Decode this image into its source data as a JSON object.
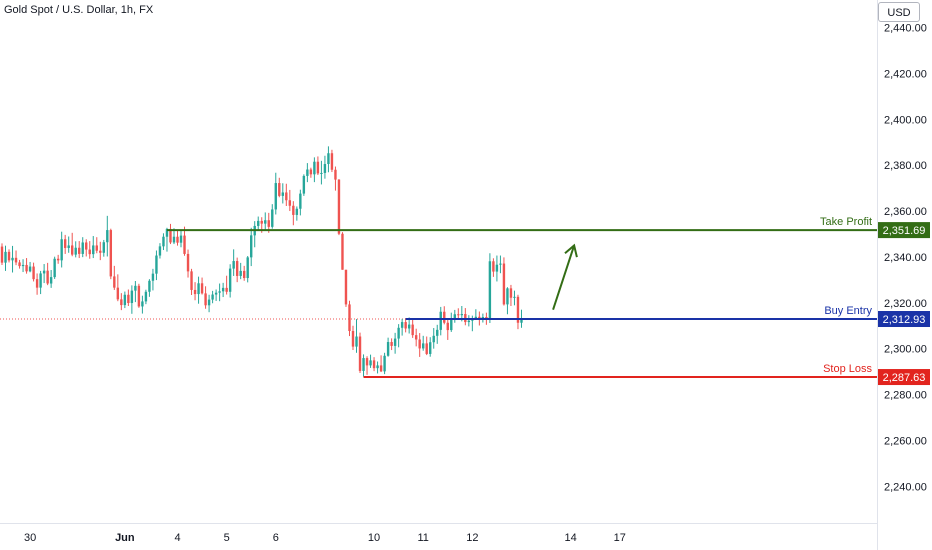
{
  "header": {
    "title": "Gold Spot / U.S. Dollar, 1h, FX"
  },
  "currency": "USD",
  "colors": {
    "up": "#26a69a",
    "down": "#ef5350",
    "take_profit": "#336d15",
    "buy_entry": "#1a33a7",
    "stop_loss": "#e2241e",
    "arrow": "#336d15",
    "axis_text": "#131722",
    "dotted": "#ef5350"
  },
  "chart_data": {
    "type": "candlestick",
    "title": "Gold Spot / U.S. Dollar, 1h, FX",
    "ylim": [
      2224,
      2452
    ],
    "y_ticks": [
      2240,
      2260,
      2280,
      2300,
      2320,
      2340,
      2360,
      2380,
      2400,
      2420,
      2440
    ],
    "y_tick_labels": [
      "2,240.00",
      "2,260.00",
      "2,280.00",
      "2,300.00",
      "2,320.00",
      "2,340.00",
      "2,360.00",
      "2,380.00",
      "2,400.00",
      "2,420.00",
      "2,440.00"
    ],
    "x_ticks": [
      {
        "bar": 8,
        "label": "30"
      },
      {
        "bar": 35,
        "label": "Jun"
      },
      {
        "bar": 50,
        "label": "4"
      },
      {
        "bar": 64,
        "label": "5"
      },
      {
        "bar": 78,
        "label": "6"
      },
      {
        "bar": 106,
        "label": "10"
      },
      {
        "bar": 120,
        "label": "11"
      },
      {
        "bar": 134,
        "label": "12"
      },
      {
        "bar": 162,
        "label": "14"
      },
      {
        "bar": 176,
        "label": "17"
      }
    ],
    "levels": [
      {
        "name": "Take Profit",
        "value": 2351.69,
        "label": "2,351.69",
        "start_bar": 47
      },
      {
        "name": "Buy Entry",
        "value": 2312.93,
        "label": "2,312.93",
        "start_bar": 115
      },
      {
        "name": "Stop Loss",
        "value": 2287.63,
        "label": "2,287.63",
        "start_bar": 103
      }
    ],
    "current_price": 2312.93,
    "arrow": {
      "from_bar": 157,
      "from": 2317,
      "to_bar": 163,
      "to": 2345
    },
    "candles": [
      [
        2344.5,
        2345.9,
        2336.5,
        2337.5
      ],
      [
        2337.5,
        2344.9,
        2333.9,
        2342.2
      ],
      [
        2342.2,
        2343.3,
        2337.6,
        2338.5
      ],
      [
        2338.5,
        2344.8,
        2333.2,
        2339.6
      ],
      [
        2339.6,
        2342.8,
        2336.4,
        2337.6
      ],
      [
        2337.6,
        2338.7,
        2334.9,
        2336.0
      ],
      [
        2336.0,
        2339.0,
        2333.4,
        2336.5
      ],
      [
        2336.5,
        2339.5,
        2332.7,
        2333.7
      ],
      [
        2333.7,
        2337.8,
        2333.3,
        2335.8
      ],
      [
        2335.8,
        2337.5,
        2329.3,
        2330.3
      ],
      [
        2330.3,
        2332.8,
        2323.5,
        2326.6
      ],
      [
        2326.6,
        2333.9,
        2323.8,
        2332.8
      ],
      [
        2332.8,
        2336.9,
        2328.6,
        2334.0
      ],
      [
        2334.0,
        2337.4,
        2327.7,
        2328.4
      ],
      [
        2328.4,
        2334.3,
        2326.5,
        2331.2
      ],
      [
        2331.2,
        2340.1,
        2330.4,
        2339.2
      ],
      [
        2339.2,
        2340.9,
        2337.0,
        2338.5
      ],
      [
        2338.5,
        2351.0,
        2335.4,
        2347.7
      ],
      [
        2347.7,
        2349.6,
        2341.3,
        2343.9
      ],
      [
        2343.9,
        2348.9,
        2341.8,
        2345.0
      ],
      [
        2345.0,
        2350.5,
        2340.3,
        2341.0
      ],
      [
        2341.0,
        2346.8,
        2339.8,
        2344.0
      ],
      [
        2344.0,
        2346.9,
        2339.5,
        2341.3
      ],
      [
        2341.3,
        2348.6,
        2339.9,
        2346.3
      ],
      [
        2346.3,
        2347.7,
        2340.2,
        2343.2
      ],
      [
        2343.2,
        2346.9,
        2339.2,
        2341.2
      ],
      [
        2341.2,
        2349.1,
        2339.5,
        2345.0
      ],
      [
        2345.0,
        2348.6,
        2341.6,
        2342.7
      ],
      [
        2342.7,
        2346.6,
        2338.6,
        2341.8
      ],
      [
        2341.8,
        2347.4,
        2340.1,
        2346.4
      ],
      [
        2346.4,
        2357.9,
        2340.2,
        2351.7
      ],
      [
        2351.7,
        2352.3,
        2330.3,
        2331.5
      ],
      [
        2331.5,
        2336.1,
        2325.6,
        2326.6
      ],
      [
        2326.6,
        2332.4,
        2320.7,
        2321.5
      ],
      [
        2321.5,
        2324.2,
        2316.8,
        2319.0
      ],
      [
        2319.0,
        2324.9,
        2317.7,
        2323.5
      ],
      [
        2323.5,
        2325.8,
        2318.6,
        2319.9
      ],
      [
        2319.9,
        2327.6,
        2315.2,
        2325.3
      ],
      [
        2325.3,
        2329.5,
        2320.3,
        2327.4
      ],
      [
        2327.4,
        2328.3,
        2317.8,
        2318.4
      ],
      [
        2318.4,
        2323.1,
        2315.3,
        2320.6
      ],
      [
        2320.6,
        2325.7,
        2319.4,
        2324.8
      ],
      [
        2324.8,
        2330.3,
        2322.6,
        2329.6
      ],
      [
        2329.6,
        2334.8,
        2325.4,
        2332.7
      ],
      [
        2332.7,
        2342.8,
        2329.9,
        2340.6
      ],
      [
        2340.6,
        2346.0,
        2339.3,
        2344.6
      ],
      [
        2344.6,
        2350.3,
        2343.0,
        2348.8
      ],
      [
        2348.8,
        2352.7,
        2342.3,
        2352.2
      ],
      [
        2352.2,
        2354.4,
        2345.6,
        2346.3
      ],
      [
        2346.3,
        2352.5,
        2345.6,
        2348.8
      ],
      [
        2348.8,
        2351.4,
        2344.9,
        2346.2
      ],
      [
        2346.2,
        2351.3,
        2344.2,
        2349.3
      ],
      [
        2349.3,
        2353.2,
        2340.5,
        2341.3
      ],
      [
        2341.3,
        2343.2,
        2331.0,
        2333.7
      ],
      [
        2333.7,
        2334.8,
        2323.4,
        2325.6
      ],
      [
        2325.6,
        2329.0,
        2321.1,
        2323.8
      ],
      [
        2323.8,
        2331.4,
        2319.6,
        2328.5
      ],
      [
        2328.5,
        2331.0,
        2323.6,
        2324.1
      ],
      [
        2324.1,
        2327.2,
        2317.4,
        2318.9
      ],
      [
        2318.9,
        2323.5,
        2315.9,
        2321.4
      ],
      [
        2321.4,
        2325.2,
        2319.8,
        2323.6
      ],
      [
        2323.6,
        2325.8,
        2320.8,
        2324.4
      ],
      [
        2324.4,
        2328.4,
        2320.7,
        2325.0
      ],
      [
        2325.0,
        2328.7,
        2322.5,
        2326.5
      ],
      [
        2326.5,
        2331.8,
        2323.6,
        2324.8
      ],
      [
        2324.8,
        2336.8,
        2322.3,
        2334.9
      ],
      [
        2334.9,
        2343.3,
        2331.7,
        2338.2
      ],
      [
        2338.2,
        2339.7,
        2329.0,
        2331.7
      ],
      [
        2331.7,
        2337.4,
        2330.3,
        2333.9
      ],
      [
        2333.9,
        2336.1,
        2329.6,
        2330.8
      ],
      [
        2330.8,
        2340.4,
        2328.9,
        2339.8
      ],
      [
        2339.8,
        2352.7,
        2336.0,
        2349.4
      ],
      [
        2349.4,
        2355.6,
        2344.2,
        2353.5
      ],
      [
        2353.5,
        2357.6,
        2351.6,
        2355.7
      ],
      [
        2355.7,
        2357.3,
        2350.5,
        2354.5
      ],
      [
        2354.5,
        2359.4,
        2351.6,
        2356.0
      ],
      [
        2356.0,
        2359.2,
        2350.5,
        2353.1
      ],
      [
        2353.1,
        2363.0,
        2352.3,
        2360.7
      ],
      [
        2360.7,
        2376.7,
        2358.5,
        2372.2
      ],
      [
        2372.2,
        2374.5,
        2366.0,
        2366.6
      ],
      [
        2366.6,
        2372.1,
        2363.3,
        2368.1
      ],
      [
        2368.1,
        2371.9,
        2362.2,
        2364.7
      ],
      [
        2364.7,
        2369.2,
        2360.0,
        2362.3
      ],
      [
        2362.3,
        2364.3,
        2353.8,
        2358.3
      ],
      [
        2358.3,
        2362.0,
        2355.8,
        2361.0
      ],
      [
        2361.0,
        2369.3,
        2358.1,
        2367.6
      ],
      [
        2367.6,
        2376.0,
        2366.6,
        2375.3
      ],
      [
        2375.3,
        2380.9,
        2372.6,
        2378.1
      ],
      [
        2378.1,
        2378.9,
        2374.5,
        2376.0
      ],
      [
        2376.0,
        2383.4,
        2372.6,
        2381.5
      ],
      [
        2381.5,
        2383.8,
        2375.7,
        2376.4
      ],
      [
        2376.4,
        2381.9,
        2371.6,
        2376.6
      ],
      [
        2376.6,
        2384.1,
        2374.1,
        2380.5
      ],
      [
        2380.5,
        2388.2,
        2376.9,
        2385.2
      ],
      [
        2385.2,
        2386.7,
        2377.0,
        2378.0
      ],
      [
        2378.0,
        2379.4,
        2368.9,
        2373.7
      ],
      [
        2373.7,
        2373.9,
        2349.5,
        2350.1
      ],
      [
        2350.1,
        2350.8,
        2334.4,
        2334.4
      ],
      [
        2334.4,
        2334.4,
        2318.2,
        2319.3
      ],
      [
        2319.3,
        2320.9,
        2305.5,
        2307.7
      ],
      [
        2307.7,
        2310.0,
        2299.4,
        2300.9
      ],
      [
        2300.9,
        2312.9,
        2298.2,
        2305.3
      ],
      [
        2305.3,
        2307.0,
        2289.4,
        2290.3
      ],
      [
        2290.3,
        2297.5,
        2287.8,
        2295.9
      ],
      [
        2295.9,
        2296.7,
        2288.6,
        2292.7
      ],
      [
        2292.7,
        2297.4,
        2291.6,
        2294.9
      ],
      [
        2294.9,
        2296.3,
        2290.2,
        2291.5
      ],
      [
        2291.5,
        2294.4,
        2289.2,
        2292.7
      ],
      [
        2292.7,
        2297.1,
        2289.8,
        2290.1
      ],
      [
        2290.1,
        2298.2,
        2288.9,
        2296.9
      ],
      [
        2296.9,
        2304.8,
        2296.5,
        2302.9
      ],
      [
        2302.9,
        2304.5,
        2299.4,
        2301.2
      ],
      [
        2301.2,
        2306.9,
        2297.8,
        2304.4
      ],
      [
        2304.4,
        2310.7,
        2300.6,
        2309.1
      ],
      [
        2309.1,
        2313.0,
        2305.7,
        2311.6
      ],
      [
        2311.6,
        2313.3,
        2307.1,
        2308.8
      ],
      [
        2308.8,
        2313.6,
        2306.6,
        2310.5
      ],
      [
        2310.5,
        2312.6,
        2304.7,
        2305.9
      ],
      [
        2305.9,
        2308.7,
        2301.0,
        2304.0
      ],
      [
        2304.0,
        2306.8,
        2296.4,
        2300.1
      ],
      [
        2300.1,
        2305.6,
        2299.1,
        2302.3
      ],
      [
        2302.3,
        2305.3,
        2297.2,
        2297.7
      ],
      [
        2297.7,
        2305.0,
        2296.5,
        2302.8
      ],
      [
        2302.8,
        2309.0,
        2300.0,
        2305.6
      ],
      [
        2305.6,
        2310.4,
        2302.1,
        2308.2
      ],
      [
        2308.2,
        2318.2,
        2305.8,
        2316.1
      ],
      [
        2316.1,
        2318.5,
        2310.6,
        2311.3
      ],
      [
        2311.3,
        2313.1,
        2303.8,
        2308.1
      ],
      [
        2308.1,
        2315.7,
        2307.3,
        2312.9
      ],
      [
        2312.9,
        2316.9,
        2311.3,
        2315.0
      ],
      [
        2315.0,
        2317.6,
        2312.5,
        2314.6
      ],
      [
        2314.6,
        2318.6,
        2311.9,
        2315.1
      ],
      [
        2315.1,
        2317.7,
        2310.2,
        2311.6
      ],
      [
        2311.6,
        2314.6,
        2309.7,
        2312.2
      ],
      [
        2312.2,
        2314.4,
        2307.6,
        2312.9
      ],
      [
        2312.9,
        2317.2,
        2312.5,
        2313.9
      ],
      [
        2313.9,
        2316.2,
        2310.1,
        2313.2
      ],
      [
        2313.2,
        2315.3,
        2311.4,
        2313.8
      ],
      [
        2313.8,
        2315.7,
        2310.4,
        2313.1
      ],
      [
        2313.1,
        2341.6,
        2311.2,
        2338.1
      ],
      [
        2338.1,
        2339.4,
        2331.3,
        2333.6
      ],
      [
        2333.6,
        2340.6,
        2329.3,
        2336.6
      ],
      [
        2336.6,
        2340.6,
        2332.9,
        2337.1
      ],
      [
        2337.1,
        2339.8,
        2318.8,
        2319.3
      ],
      [
        2319.3,
        2326.8,
        2315.0,
        2326.3
      ],
      [
        2326.3,
        2327.8,
        2318.6,
        2322.2
      ],
      [
        2322.2,
        2325.3,
        2318.9,
        2322.6
      ],
      [
        2322.6,
        2323.5,
        2308.5,
        2311.3
      ],
      [
        2311.3,
        2317.0,
        2309.1,
        2312.9
      ]
    ]
  }
}
